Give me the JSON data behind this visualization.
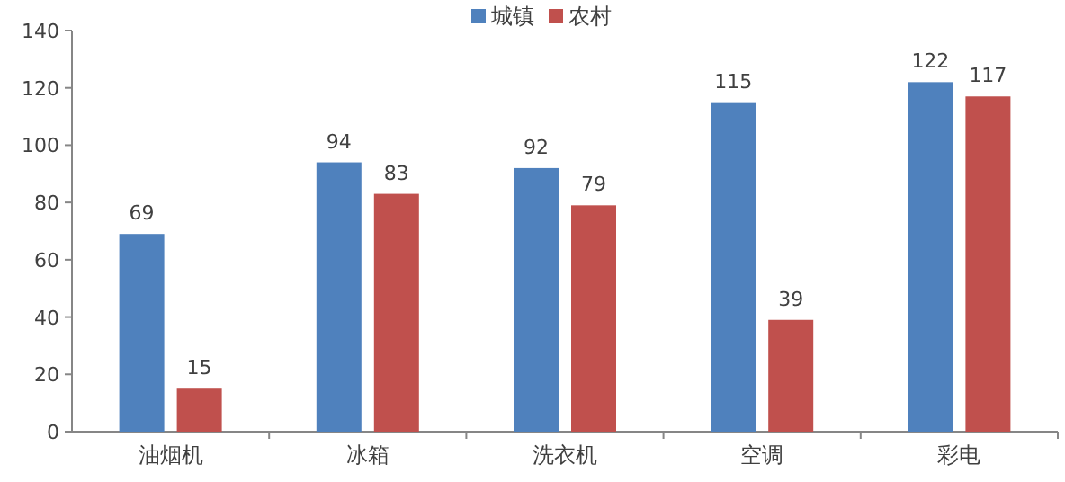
{
  "chart_data": {
    "type": "bar",
    "categories": [
      "油烟机",
      "冰箱",
      "洗衣机",
      "空调",
      "彩电"
    ],
    "series": [
      {
        "name": "城镇",
        "color": "#4f81bd",
        "values": [
          69,
          94,
          92,
          115,
          122
        ]
      },
      {
        "name": "农村",
        "color": "#c0504d",
        "values": [
          15,
          83,
          79,
          39,
          117
        ]
      }
    ],
    "ylim": [
      0,
      140
    ],
    "yticks": [
      0,
      20,
      40,
      60,
      80,
      100,
      120,
      140
    ],
    "data_labels": true,
    "legend": "top",
    "grid": false
  }
}
